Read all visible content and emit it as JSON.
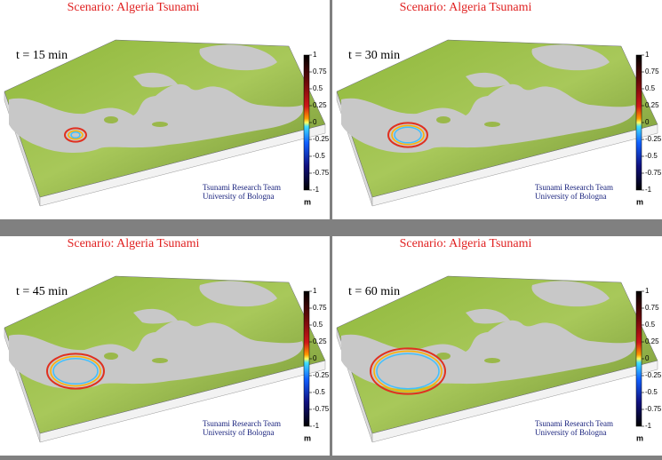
{
  "panels": [
    {
      "title": "Scenario: Algeria Tsunami",
      "time": "t = 15  min",
      "credits": [
        "Tsunami Research Team",
        "University of Bologna"
      ],
      "colorbar": {
        "ticks": [
          1,
          0.75,
          0.5,
          0.25,
          0,
          -0.25,
          -0.5,
          -0.75,
          -1
        ],
        "unit": "m"
      }
    },
    {
      "title": "Scenario: Algeria Tsunami",
      "time": "t = 30  min",
      "credits": [
        "Tsunami Research Team",
        "University of Bologna"
      ],
      "colorbar": {
        "ticks": [
          1,
          0.75,
          0.5,
          0.25,
          0,
          -0.25,
          -0.5,
          -0.75,
          -1
        ],
        "unit": "m"
      }
    },
    {
      "title": "Scenario: Algeria Tsunami",
      "time": "t = 45  min",
      "credits": [
        "Tsunami Research Team",
        "University of Bologna"
      ],
      "colorbar": {
        "ticks": [
          1,
          0.75,
          0.5,
          0.25,
          0,
          -0.25,
          -0.5,
          -0.75,
          -1
        ],
        "unit": "m"
      }
    },
    {
      "title": "Scenario: Algeria Tsunami",
      "time": "t = 60  min",
      "credits": [
        "Tsunami Research Team",
        "University of Bologna"
      ],
      "colorbar": {
        "ticks": [
          1,
          0.75,
          0.5,
          0.25,
          0,
          -0.25,
          -0.5,
          -0.75,
          -1
        ],
        "unit": "m"
      }
    }
  ]
}
